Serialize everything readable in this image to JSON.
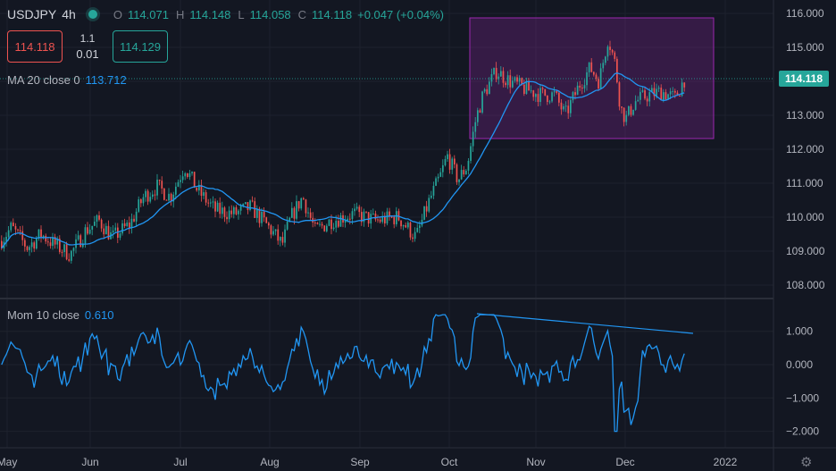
{
  "header": {
    "symbol": "USDJPY",
    "interval": "4h",
    "open_label": "O",
    "open": "114.071",
    "high_label": "H",
    "high": "114.148",
    "low_label": "L",
    "low": "114.058",
    "close_label": "C",
    "close": "114.118",
    "change": "+0.047 (+0.04%)"
  },
  "trade": {
    "sell_price": "114.118",
    "spread": "1.1",
    "quantity": "0.01",
    "buy_price": "114.129"
  },
  "ma_indicator": {
    "label": "MA 20 close 0",
    "value": "113.712"
  },
  "mom_indicator": {
    "label": "Mom 10 close",
    "value": "0.610"
  },
  "last_price_badge": "114.118",
  "price_axis": [
    "116.000",
    "115.000",
    "114.000",
    "113.000",
    "112.000",
    "111.000",
    "110.000",
    "109.000",
    "108.000"
  ],
  "mom_axis": [
    "1.000",
    "0.000",
    "−1.000",
    "−2.000"
  ],
  "time_axis": [
    "May",
    "Jun",
    "Jul",
    "Aug",
    "Sep",
    "Oct",
    "Nov",
    "Dec",
    "2022"
  ],
  "colors": {
    "background": "#131722",
    "up": "#26a69a",
    "down": "#ef5350",
    "ma": "#2196f3",
    "momentum": "#2196f3",
    "highlight_box": "#9c27b0",
    "grid": "#1e222d",
    "axis_text": "#b2b5be"
  },
  "chart_data": {
    "type": "candlestick",
    "price_series_approx": {
      "x": [
        "May",
        "Jun",
        "Jul",
        "Aug",
        "Sep",
        "Oct",
        "Nov",
        "Dec"
      ],
      "close": [
        109.3,
        109.6,
        110.9,
        109.4,
        109.9,
        111.2,
        113.9,
        113.6
      ]
    },
    "ma": {
      "name": "MA 20 close 0",
      "last": 113.712
    },
    "momentum": {
      "name": "Mom 10 close",
      "last": 0.61,
      "ylim": [
        -2.2,
        1.6
      ]
    },
    "price_ylim": [
      107.6,
      116.2
    ],
    "annotations": [
      "purple rectangle (Oct–Dec range 112.3–115.8)",
      "descending trendline on momentum peaks"
    ]
  },
  "icons": {
    "status": "market-open-dot-icon",
    "settings": "gear-icon"
  }
}
